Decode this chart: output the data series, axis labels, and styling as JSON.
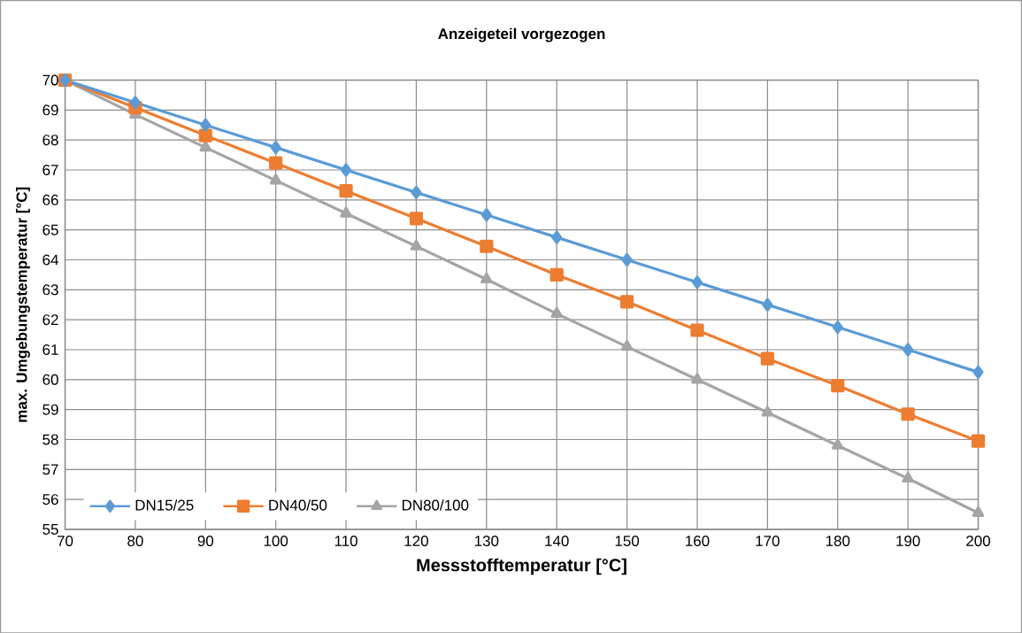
{
  "chart_data": {
    "type": "line",
    "title": "Anzeigeteil vorgezogen",
    "xlabel": "Messstofftemperatur [°C]",
    "ylabel": "max. Umgebungstemperatur [°C]",
    "x": [
      70,
      80,
      90,
      100,
      110,
      120,
      130,
      140,
      150,
      160,
      170,
      180,
      190,
      200
    ],
    "series": [
      {
        "name": "DN15/25",
        "color": "#5b9bd5",
        "marker": "diamond",
        "values": [
          70,
          69.25,
          68.5,
          67.75,
          67,
          66.25,
          65.5,
          64.75,
          64,
          63.25,
          62.5,
          61.75,
          61,
          60.25
        ]
      },
      {
        "name": "DN40/50",
        "color": "#ed7d31",
        "marker": "square",
        "values": [
          70,
          69.08,
          68.15,
          67.23,
          66.3,
          65.38,
          64.45,
          63.5,
          62.6,
          61.65,
          60.7,
          59.8,
          58.85,
          57.95
        ]
      },
      {
        "name": "DN80/100",
        "color": "#a5a5a5",
        "marker": "triangle",
        "values": [
          70,
          68.85,
          67.75,
          66.65,
          65.55,
          64.45,
          63.35,
          62.2,
          61.1,
          60,
          58.9,
          57.8,
          56.7,
          55.55
        ]
      }
    ],
    "xlim": [
      70,
      200
    ],
    "xticks": [
      70,
      80,
      90,
      100,
      110,
      120,
      130,
      140,
      150,
      160,
      170,
      180,
      190,
      200
    ],
    "ylim": [
      55,
      70
    ],
    "yticks": [
      55,
      56,
      57,
      58,
      59,
      60,
      61,
      62,
      63,
      64,
      65,
      66,
      67,
      68,
      69,
      70
    ],
    "grid": true,
    "legend": "bottom left",
    "line_style": "solid"
  }
}
